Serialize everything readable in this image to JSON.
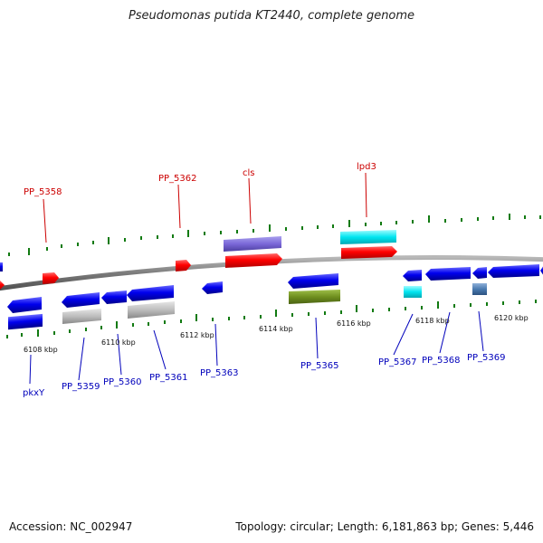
{
  "title": "Pseudomonas putida KT2440, complete genome",
  "footer": {
    "accession": "Accession: NC_002947",
    "summary": "Topology: circular; Length: 6,181,863 bp; Genes: 5,446"
  },
  "colors": {
    "forward": "#ff0000",
    "reverse": "#0000ee",
    "backbone": "#7a7a7a",
    "tick_marks": "#117a11",
    "label_forward": "#cc0000",
    "label_reverse": "#0000bb"
  },
  "tick_labels": [
    "6108 kbp",
    "6110 kbp",
    "6112 kbp",
    "6114 kbp",
    "6116 kbp",
    "6118 kbp",
    "6120 kbp"
  ],
  "top_labels": [
    "PP_5358",
    "PP_5362",
    "cls",
    "lpd3"
  ],
  "bottom_labels": [
    "pkxY",
    "PP_5359",
    "PP_5360",
    "PP_5361",
    "PP_5363",
    "PP_5365",
    "PP_5367",
    "PP_5368",
    "PP_5369"
  ]
}
